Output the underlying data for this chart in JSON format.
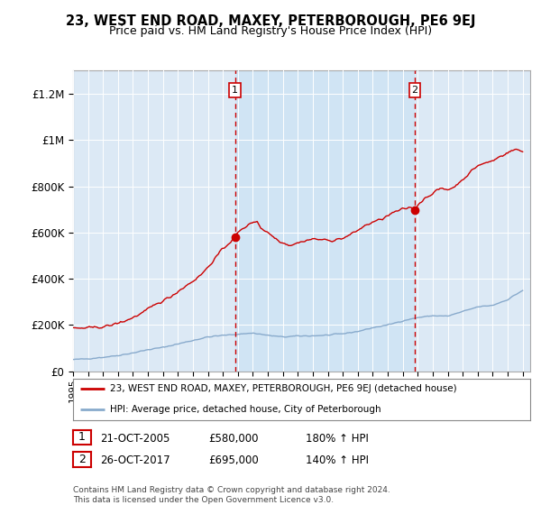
{
  "title": "23, WEST END ROAD, MAXEY, PETERBOROUGH, PE6 9EJ",
  "subtitle": "Price paid vs. HM Land Registry's House Price Index (HPI)",
  "bg_color": "#dce9f5",
  "outer_bg_color": "#ffffff",
  "legend_label_red": "23, WEST END ROAD, MAXEY, PETERBOROUGH, PE6 9EJ (detached house)",
  "legend_label_blue": "HPI: Average price, detached house, City of Peterborough",
  "footnote": "Contains HM Land Registry data © Crown copyright and database right 2024.\nThis data is licensed under the Open Government Licence v3.0.",
  "sale1_label": "1",
  "sale1_date": "21-OCT-2005",
  "sale1_price": "£580,000",
  "sale1_hpi": "180% ↑ HPI",
  "sale1_x": 2005.8,
  "sale1_y": 580000,
  "sale2_label": "2",
  "sale2_date": "26-OCT-2017",
  "sale2_price": "£695,000",
  "sale2_hpi": "140% ↑ HPI",
  "sale2_x": 2017.8,
  "sale2_y": 695000,
  "xmin": 1995,
  "xmax": 2025.5,
  "ymin": 0,
  "ymax": 1300000,
  "yticks": [
    0,
    200000,
    400000,
    600000,
    800000,
    1000000,
    1200000
  ],
  "ytick_labels": [
    "£0",
    "£200K",
    "£400K",
    "£600K",
    "£800K",
    "£1M",
    "£1.2M"
  ],
  "xticks": [
    1995,
    1996,
    1997,
    1998,
    1999,
    2000,
    2001,
    2002,
    2003,
    2004,
    2005,
    2006,
    2007,
    2008,
    2009,
    2010,
    2011,
    2012,
    2013,
    2014,
    2015,
    2016,
    2017,
    2018,
    2019,
    2020,
    2021,
    2022,
    2023,
    2024,
    2025
  ],
  "red_color": "#cc0000",
  "blue_color": "#88aacc",
  "shade_color": "#d0e4f4",
  "dashed_color": "#cc0000",
  "hpi_base_years": [
    1995.0,
    1996.0,
    1997.0,
    1998.0,
    1999.0,
    2000.0,
    2001.0,
    2002.0,
    2003.0,
    2004.0,
    2005.0,
    2006.0,
    2007.0,
    2008.0,
    2009.0,
    2010.0,
    2011.0,
    2012.0,
    2013.0,
    2014.0,
    2015.0,
    2016.0,
    2017.0,
    2018.0,
    2019.0,
    2020.0,
    2021.0,
    2022.0,
    2023.0,
    2024.0,
    2025.0
  ],
  "hpi_base_values": [
    50000,
    54000,
    60000,
    68000,
    79000,
    93000,
    103000,
    118000,
    133000,
    148000,
    155000,
    160000,
    165000,
    155000,
    148000,
    152000,
    153000,
    156000,
    162000,
    172000,
    188000,
    200000,
    218000,
    232000,
    240000,
    238000,
    258000,
    278000,
    285000,
    310000,
    350000
  ],
  "price_base_years": [
    1995.0,
    1996.0,
    1997.0,
    1997.5,
    1998.0,
    1998.5,
    1999.0,
    1999.5,
    2000.0,
    2000.5,
    2001.0,
    2001.5,
    2002.0,
    2002.5,
    2003.0,
    2003.5,
    2004.0,
    2004.5,
    2005.0,
    2005.5,
    2005.8,
    2006.0,
    2006.5,
    2007.0,
    2007.3,
    2007.5,
    2008.0,
    2008.5,
    2009.0,
    2009.5,
    2010.0,
    2010.5,
    2011.0,
    2011.5,
    2012.0,
    2012.5,
    2013.0,
    2013.5,
    2014.0,
    2014.5,
    2015.0,
    2015.5,
    2016.0,
    2016.5,
    2017.0,
    2017.5,
    2017.8,
    2018.0,
    2018.5,
    2019.0,
    2019.5,
    2020.0,
    2020.5,
    2021.0,
    2021.5,
    2022.0,
    2022.5,
    2023.0,
    2023.5,
    2024.0,
    2024.5,
    2025.0
  ],
  "price_base_values": [
    185000,
    187000,
    192000,
    198000,
    208000,
    218000,
    232000,
    248000,
    268000,
    288000,
    305000,
    322000,
    345000,
    368000,
    390000,
    415000,
    450000,
    490000,
    530000,
    560000,
    580000,
    600000,
    625000,
    645000,
    650000,
    620000,
    600000,
    575000,
    555000,
    545000,
    555000,
    565000,
    572000,
    570000,
    565000,
    568000,
    575000,
    590000,
    610000,
    630000,
    645000,
    655000,
    672000,
    690000,
    700000,
    710000,
    695000,
    720000,
    750000,
    770000,
    790000,
    785000,
    800000,
    830000,
    860000,
    890000,
    900000,
    910000,
    930000,
    945000,
    960000,
    950000
  ]
}
